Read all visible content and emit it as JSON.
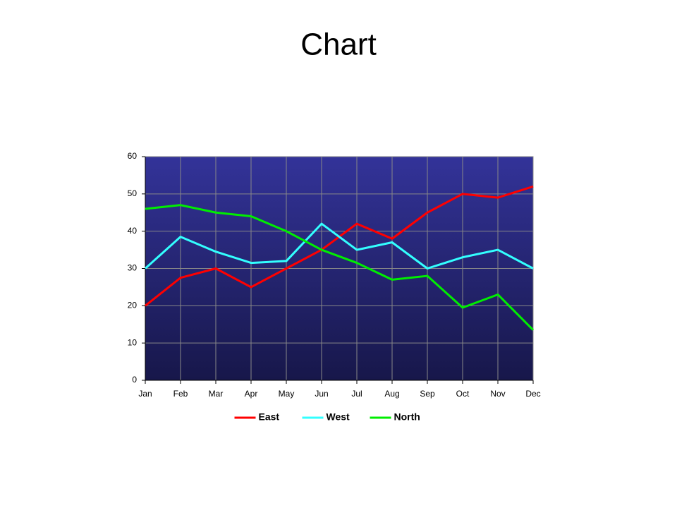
{
  "chart_data": {
    "type": "line",
    "title": "Chart",
    "categories": [
      "Jan",
      "Feb",
      "Mar",
      "Apr",
      "May",
      "Jun",
      "Jul",
      "Aug",
      "Sep",
      "Oct",
      "Nov",
      "Dec"
    ],
    "series": [
      {
        "name": "East",
        "color": "#ff0000",
        "values": [
          20,
          27.5,
          30,
          25,
          30,
          35,
          42,
          38,
          45,
          50,
          49,
          52
        ]
      },
      {
        "name": "West",
        "color": "#33ffff",
        "values": [
          30,
          38.5,
          34.5,
          31.5,
          32,
          42,
          35,
          37,
          30,
          33,
          35,
          30
        ]
      },
      {
        "name": "North",
        "color": "#00ee00",
        "values": [
          46,
          47,
          45,
          44,
          40,
          35,
          31.5,
          27,
          28,
          19.5,
          23,
          13.5
        ]
      }
    ],
    "ylim": [
      0,
      60
    ],
    "yticks": [
      0,
      10,
      20,
      30,
      40,
      50,
      60
    ],
    "grid": true,
    "legend": "bottom"
  }
}
